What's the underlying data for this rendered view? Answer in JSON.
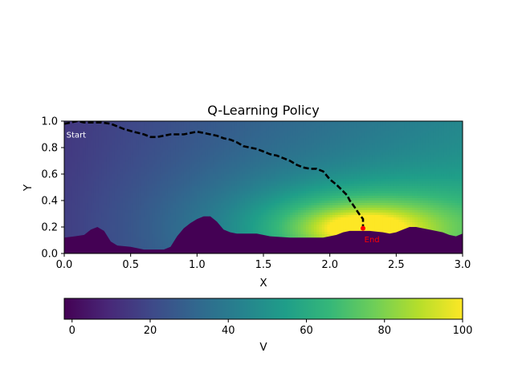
{
  "chart_data": {
    "type": "heatmap",
    "title": "Q-Learning Policy",
    "xlabel": "X",
    "ylabel": "Y",
    "xlim": [
      0.0,
      3.0
    ],
    "ylim": [
      0.0,
      1.0
    ],
    "x_ticks": [
      "0.0",
      "0.5",
      "1.0",
      "1.5",
      "2.0",
      "2.5",
      "3.0"
    ],
    "y_ticks": [
      "0.0",
      "0.2",
      "0.4",
      "0.6",
      "0.8",
      "1.0"
    ],
    "colorbar": {
      "label": "V",
      "range": [
        -2,
        100
      ],
      "ticks": [
        "0",
        "20",
        "40",
        "60",
        "80",
        "100"
      ],
      "colormap": "viridis",
      "orientation": "horizontal"
    },
    "value_field": {
      "peak_value": 100,
      "peak_at": [
        2.25,
        0.19
      ],
      "obstacle_value": -2
    },
    "terrain_profile": {
      "x": [
        0.0,
        0.08,
        0.15,
        0.2,
        0.25,
        0.3,
        0.35,
        0.4,
        0.5,
        0.6,
        0.75,
        0.8,
        0.85,
        0.9,
        0.95,
        1.0,
        1.05,
        1.1,
        1.15,
        1.2,
        1.25,
        1.3,
        1.45,
        1.55,
        1.7,
        1.8,
        1.95,
        2.05,
        2.1,
        2.15,
        2.2,
        2.3,
        2.4,
        2.45,
        2.5,
        2.55,
        2.6,
        2.65,
        2.75,
        2.85,
        2.9,
        2.95,
        3.0
      ],
      "y": [
        0.12,
        0.13,
        0.14,
        0.18,
        0.2,
        0.17,
        0.09,
        0.06,
        0.05,
        0.03,
        0.03,
        0.05,
        0.13,
        0.19,
        0.23,
        0.26,
        0.28,
        0.28,
        0.24,
        0.18,
        0.16,
        0.15,
        0.15,
        0.13,
        0.12,
        0.12,
        0.12,
        0.14,
        0.16,
        0.17,
        0.17,
        0.17,
        0.16,
        0.15,
        0.16,
        0.18,
        0.2,
        0.2,
        0.18,
        0.16,
        0.14,
        0.13,
        0.15
      ]
    },
    "path": {
      "style": "dashed",
      "color": "#000000",
      "x": [
        0.0,
        0.05,
        0.1,
        0.15,
        0.2,
        0.28,
        0.35,
        0.4,
        0.45,
        0.52,
        0.6,
        0.65,
        0.7,
        0.75,
        0.8,
        0.85,
        0.9,
        0.95,
        1.0,
        1.05,
        1.1,
        1.15,
        1.2,
        1.25,
        1.3,
        1.35,
        1.4,
        1.45,
        1.5,
        1.55,
        1.6,
        1.65,
        1.7,
        1.75,
        1.8,
        1.85,
        1.9,
        1.95,
        2.0,
        2.05,
        2.1,
        2.13,
        2.15,
        2.18,
        2.2,
        2.22,
        2.25,
        2.25
      ],
      "y": [
        0.98,
        0.99,
        1.0,
        0.99,
        0.99,
        0.99,
        0.98,
        0.96,
        0.94,
        0.92,
        0.9,
        0.88,
        0.88,
        0.89,
        0.9,
        0.9,
        0.9,
        0.91,
        0.92,
        0.91,
        0.9,
        0.89,
        0.87,
        0.86,
        0.84,
        0.81,
        0.8,
        0.79,
        0.77,
        0.75,
        0.74,
        0.72,
        0.7,
        0.67,
        0.65,
        0.64,
        0.64,
        0.62,
        0.56,
        0.52,
        0.47,
        0.44,
        0.4,
        0.36,
        0.33,
        0.3,
        0.26,
        0.19
      ]
    },
    "annotations": [
      {
        "text": "Start",
        "x": 0.01,
        "y": 0.9,
        "color": "#ffffff"
      },
      {
        "text": "End",
        "x": 2.26,
        "y": 0.11,
        "color": "#ff0000"
      }
    ],
    "end_marker": {
      "x": 2.25,
      "y": 0.19,
      "color": "#ff0000"
    }
  }
}
